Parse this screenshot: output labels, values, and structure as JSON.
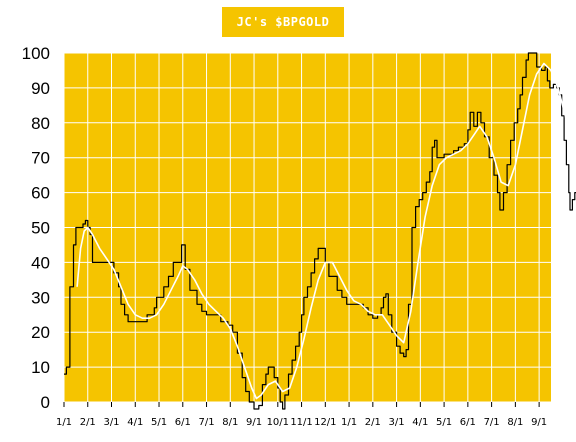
{
  "chart_data": {
    "type": "line",
    "title": "JC's $BPGOLD",
    "xlabel": "",
    "ylabel": "",
    "ylim": [
      0,
      100
    ],
    "grid": true,
    "colors": {
      "background": "#f5c400",
      "grid": "#ffffff",
      "series_primary": "#000000",
      "series_smooth": "#ffffff"
    },
    "y_ticks": [
      "0",
      "10",
      "20",
      "30",
      "40",
      "50",
      "60",
      "70",
      "80",
      "90",
      "100"
    ],
    "x_ticks": [
      "1/1",
      "2/1",
      "3/1",
      "4/1",
      "5/1",
      "6/1",
      "7/1",
      "8/1",
      "9/1",
      "10/1",
      "11/1",
      "12/1",
      "1/1",
      "2/1",
      "3/1",
      "4/1",
      "5/1",
      "6/1",
      "7/1",
      "8/1",
      "9/1"
    ],
    "series": [
      {
        "color": "#000000",
        "points": [
          [
            0.0,
            8
          ],
          [
            0.1,
            10
          ],
          [
            0.25,
            33
          ],
          [
            0.4,
            45
          ],
          [
            0.5,
            50
          ],
          [
            0.8,
            51
          ],
          [
            0.9,
            52
          ],
          [
            1.0,
            50
          ],
          [
            1.1,
            48
          ],
          [
            1.2,
            40
          ],
          [
            1.6,
            40
          ],
          [
            1.9,
            40
          ],
          [
            2.1,
            37
          ],
          [
            2.3,
            33
          ],
          [
            2.4,
            28
          ],
          [
            2.55,
            25
          ],
          [
            2.7,
            23
          ],
          [
            3.0,
            23
          ],
          [
            3.25,
            23
          ],
          [
            3.5,
            25
          ],
          [
            3.8,
            27
          ],
          [
            3.9,
            30
          ],
          [
            4.1,
            30
          ],
          [
            4.2,
            33
          ],
          [
            4.4,
            36
          ],
          [
            4.6,
            40
          ],
          [
            4.85,
            40
          ],
          [
            4.95,
            45
          ],
          [
            5.1,
            38
          ],
          [
            5.3,
            32
          ],
          [
            5.6,
            28
          ],
          [
            5.8,
            26
          ],
          [
            6.0,
            25
          ],
          [
            6.3,
            25
          ],
          [
            6.6,
            23
          ],
          [
            6.9,
            22
          ],
          [
            7.1,
            20
          ],
          [
            7.3,
            14
          ],
          [
            7.5,
            7
          ],
          [
            7.65,
            3
          ],
          [
            7.8,
            0
          ],
          [
            8.0,
            -2
          ],
          [
            8.2,
            -1
          ],
          [
            8.35,
            5
          ],
          [
            8.5,
            8
          ],
          [
            8.6,
            10
          ],
          [
            8.75,
            10
          ],
          [
            8.85,
            7
          ],
          [
            9.0,
            4
          ],
          [
            9.1,
            0
          ],
          [
            9.2,
            -2
          ],
          [
            9.3,
            2
          ],
          [
            9.45,
            8
          ],
          [
            9.6,
            12
          ],
          [
            9.75,
            16
          ],
          [
            9.9,
            20
          ],
          [
            10.0,
            25
          ],
          [
            10.1,
            30
          ],
          [
            10.25,
            33
          ],
          [
            10.4,
            37
          ],
          [
            10.55,
            41
          ],
          [
            10.7,
            44
          ],
          [
            10.9,
            44
          ],
          [
            11.0,
            40
          ],
          [
            11.15,
            36
          ],
          [
            11.3,
            36
          ],
          [
            11.5,
            32
          ],
          [
            11.7,
            30
          ],
          [
            11.9,
            28
          ],
          [
            12.1,
            28
          ],
          [
            12.4,
            28
          ],
          [
            12.6,
            27
          ],
          [
            12.8,
            25
          ],
          [
            13.0,
            24
          ],
          [
            13.2,
            25
          ],
          [
            13.35,
            27
          ],
          [
            13.45,
            30
          ],
          [
            13.55,
            31
          ],
          [
            13.65,
            25
          ],
          [
            13.8,
            20
          ],
          [
            14.0,
            16
          ],
          [
            14.15,
            14
          ],
          [
            14.3,
            13
          ],
          [
            14.4,
            15
          ],
          [
            14.5,
            28
          ],
          [
            14.65,
            50
          ],
          [
            14.8,
            56
          ],
          [
            14.95,
            58
          ],
          [
            15.1,
            60
          ],
          [
            15.25,
            63
          ],
          [
            15.4,
            66
          ],
          [
            15.5,
            73
          ],
          [
            15.6,
            75
          ],
          [
            15.7,
            70
          ],
          [
            16.0,
            71
          ],
          [
            16.2,
            71
          ],
          [
            16.4,
            72
          ],
          [
            16.6,
            73
          ],
          [
            16.85,
            74
          ],
          [
            17.0,
            78
          ],
          [
            17.1,
            83
          ],
          [
            17.25,
            79
          ],
          [
            17.4,
            83
          ],
          [
            17.55,
            80
          ],
          [
            17.7,
            76
          ],
          [
            17.9,
            70
          ],
          [
            18.1,
            65
          ],
          [
            18.25,
            60
          ],
          [
            18.35,
            55
          ],
          [
            18.5,
            60
          ],
          [
            18.65,
            68
          ],
          [
            18.8,
            75
          ],
          [
            18.95,
            80
          ],
          [
            19.1,
            84
          ],
          [
            19.2,
            88
          ],
          [
            19.3,
            93
          ],
          [
            19.45,
            98
          ],
          [
            19.55,
            100
          ],
          [
            19.75,
            100
          ],
          [
            19.9,
            96
          ],
          [
            20.1,
            95
          ],
          [
            20.25,
            96
          ],
          [
            20.35,
            92
          ],
          [
            20.45,
            90
          ],
          [
            20.6,
            91
          ],
          [
            20.75,
            90
          ],
          [
            20.85,
            88
          ],
          [
            20.95,
            82
          ],
          [
            21.05,
            75
          ],
          [
            21.15,
            68
          ],
          [
            21.25,
            60
          ],
          [
            21.3,
            55
          ],
          [
            21.4,
            58
          ],
          [
            21.5,
            60
          ],
          [
            21.6,
            60
          ]
        ]
      },
      {
        "color": "#ffffff",
        "points": [
          [
            0.55,
            33
          ],
          [
            0.7,
            44
          ],
          [
            0.85,
            49
          ],
          [
            1.0,
            50
          ],
          [
            1.2,
            48
          ],
          [
            1.5,
            44
          ],
          [
            1.8,
            41
          ],
          [
            2.1,
            38
          ],
          [
            2.4,
            33
          ],
          [
            2.7,
            28
          ],
          [
            3.0,
            25
          ],
          [
            3.3,
            24
          ],
          [
            3.6,
            24
          ],
          [
            3.9,
            25
          ],
          [
            4.2,
            28
          ],
          [
            4.5,
            32
          ],
          [
            4.8,
            36
          ],
          [
            5.0,
            39
          ],
          [
            5.2,
            38
          ],
          [
            5.5,
            35
          ],
          [
            5.8,
            31
          ],
          [
            6.1,
            28
          ],
          [
            6.4,
            26
          ],
          [
            6.7,
            24
          ],
          [
            7.0,
            21
          ],
          [
            7.3,
            16
          ],
          [
            7.6,
            10
          ],
          [
            7.9,
            4
          ],
          [
            8.1,
            1
          ],
          [
            8.3,
            2
          ],
          [
            8.6,
            5
          ],
          [
            8.9,
            6
          ],
          [
            9.2,
            3
          ],
          [
            9.5,
            4
          ],
          [
            9.8,
            10
          ],
          [
            10.1,
            18
          ],
          [
            10.4,
            27
          ],
          [
            10.7,
            35
          ],
          [
            11.0,
            40
          ],
          [
            11.3,
            40
          ],
          [
            11.6,
            36
          ],
          [
            11.9,
            32
          ],
          [
            12.2,
            29
          ],
          [
            12.5,
            28
          ],
          [
            12.8,
            26
          ],
          [
            13.1,
            25
          ],
          [
            13.4,
            25
          ],
          [
            13.7,
            22
          ],
          [
            14.0,
            19
          ],
          [
            14.3,
            17
          ],
          [
            14.6,
            26
          ],
          [
            14.9,
            40
          ],
          [
            15.2,
            53
          ],
          [
            15.5,
            62
          ],
          [
            15.8,
            68
          ],
          [
            16.1,
            70
          ],
          [
            16.4,
            71
          ],
          [
            16.7,
            72
          ],
          [
            17.0,
            74
          ],
          [
            17.3,
            77
          ],
          [
            17.5,
            79
          ],
          [
            17.8,
            76
          ],
          [
            18.1,
            70
          ],
          [
            18.4,
            63
          ],
          [
            18.7,
            62
          ],
          [
            19.0,
            68
          ],
          [
            19.3,
            78
          ],
          [
            19.6,
            88
          ],
          [
            19.9,
            94
          ],
          [
            20.2,
            97
          ],
          [
            20.5,
            95
          ],
          [
            20.8,
            90
          ],
          [
            21.1,
            82
          ],
          [
            21.4,
            72
          ],
          [
            21.55,
            65
          ]
        ]
      }
    ]
  }
}
